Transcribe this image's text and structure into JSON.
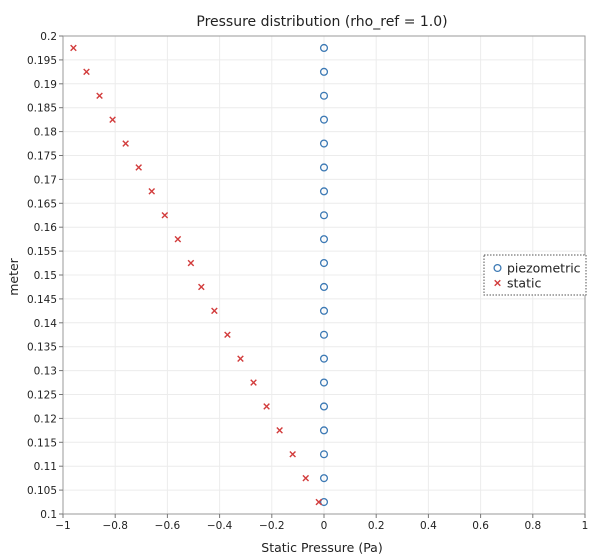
{
  "chart_data": {
    "type": "scatter",
    "title": "Pressure distribution (rho_ref = 1.0)",
    "xlabel": "Static Pressure (Pa)",
    "ylabel": "meter",
    "xlim": [
      -1,
      1
    ],
    "ylim": [
      0.1,
      0.2
    ],
    "x_ticks": [
      "−1",
      "−0.8",
      "−0.6",
      "−0.4",
      "−0.2",
      "0",
      "0.2",
      "0.4",
      "0.6",
      "0.8",
      "1"
    ],
    "y_ticks": [
      "0.1",
      "0.105",
      "0.11",
      "0.115",
      "0.12",
      "0.125",
      "0.13",
      "0.135",
      "0.14",
      "0.145",
      "0.15",
      "0.155",
      "0.16",
      "0.165",
      "0.17",
      "0.175",
      "0.18",
      "0.185",
      "0.19",
      "0.195",
      "0.2"
    ],
    "grid": true,
    "legend_position": "right-center",
    "series": [
      {
        "name": "piezometric",
        "marker": "circle",
        "color": "#3c79b4",
        "points": [
          [
            0,
            0.1025
          ],
          [
            0,
            0.1075
          ],
          [
            0,
            0.1125
          ],
          [
            0,
            0.1175
          ],
          [
            0,
            0.1225
          ],
          [
            0,
            0.1275
          ],
          [
            0,
            0.1325
          ],
          [
            0,
            0.1375
          ],
          [
            0,
            0.1425
          ],
          [
            0,
            0.1475
          ],
          [
            0,
            0.1525
          ],
          [
            0,
            0.1575
          ],
          [
            0,
            0.1625
          ],
          [
            0,
            0.1675
          ],
          [
            0,
            0.1725
          ],
          [
            0,
            0.1775
          ],
          [
            0,
            0.1825
          ],
          [
            0,
            0.1875
          ],
          [
            0,
            0.1925
          ],
          [
            0,
            0.1975
          ]
        ]
      },
      {
        "name": "static",
        "marker": "x",
        "color": "#d23c3c",
        "points": [
          [
            -0.02,
            0.1025
          ],
          [
            -0.07,
            0.1075
          ],
          [
            -0.12,
            0.1125
          ],
          [
            -0.17,
            0.1175
          ],
          [
            -0.22,
            0.1225
          ],
          [
            -0.27,
            0.1275
          ],
          [
            -0.32,
            0.1325
          ],
          [
            -0.37,
            0.1375
          ],
          [
            -0.42,
            0.1425
          ],
          [
            -0.47,
            0.1475
          ],
          [
            -0.51,
            0.1525
          ],
          [
            -0.56,
            0.1575
          ],
          [
            -0.61,
            0.1625
          ],
          [
            -0.66,
            0.1675
          ],
          [
            -0.71,
            0.1725
          ],
          [
            -0.76,
            0.1775
          ],
          [
            -0.81,
            0.1825
          ],
          [
            -0.86,
            0.1875
          ],
          [
            -0.91,
            0.1925
          ],
          [
            -0.96,
            0.1975
          ]
        ]
      }
    ]
  }
}
